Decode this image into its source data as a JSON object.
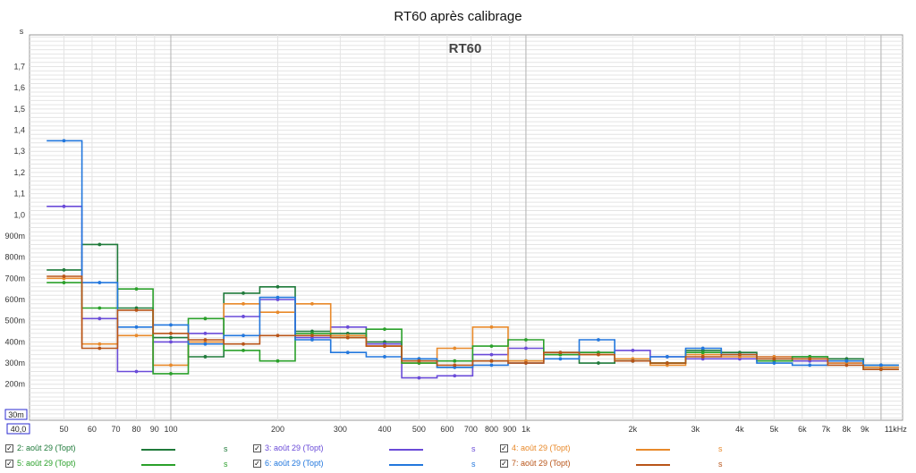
{
  "window_title": "RT60 après calibrage",
  "colors": {
    "background": "#ffffff",
    "grid_minor": "#e4e4e4",
    "grid_major": "#b4b4b4",
    "axis_text": "#333333",
    "unit_box": "#2b2bd0"
  },
  "chart_data": {
    "type": "line",
    "title": "RT60",
    "subtitle": "",
    "xlabel": "",
    "ylabel": "s",
    "x_scale": "log",
    "xlim": [
      40,
      11500
    ],
    "ylim": [
      0.03,
      1.85
    ],
    "grid": true,
    "legend_position": "bottom",
    "y_ticks": [
      {
        "value": 0.2,
        "label": "200m"
      },
      {
        "value": 0.3,
        "label": "300m"
      },
      {
        "value": 0.4,
        "label": "400m"
      },
      {
        "value": 0.5,
        "label": "500m"
      },
      {
        "value": 0.6,
        "label": "600m"
      },
      {
        "value": 0.7,
        "label": "700m"
      },
      {
        "value": 0.8,
        "label": "800m"
      },
      {
        "value": 0.9,
        "label": "900m"
      },
      {
        "value": 1.0,
        "label": "1,0"
      },
      {
        "value": 1.1,
        "label": "1,1"
      },
      {
        "value": 1.2,
        "label": "1,2"
      },
      {
        "value": 1.3,
        "label": "1,3"
      },
      {
        "value": 1.4,
        "label": "1,4"
      },
      {
        "value": 1.5,
        "label": "1,5"
      },
      {
        "value": 1.6,
        "label": "1,6"
      },
      {
        "value": 1.7,
        "label": "1,7"
      }
    ],
    "y_min_label": "30m",
    "x_ticks": [
      {
        "value": 50,
        "label": "50"
      },
      {
        "value": 60,
        "label": "60"
      },
      {
        "value": 70,
        "label": "70"
      },
      {
        "value": 80,
        "label": "80"
      },
      {
        "value": 90,
        "label": "90"
      },
      {
        "value": 100,
        "label": "100"
      },
      {
        "value": 200,
        "label": "200"
      },
      {
        "value": 300,
        "label": "300"
      },
      {
        "value": 400,
        "label": "400"
      },
      {
        "value": 500,
        "label": "500"
      },
      {
        "value": 600,
        "label": "600"
      },
      {
        "value": 700,
        "label": "700"
      },
      {
        "value": 800,
        "label": "800"
      },
      {
        "value": 900,
        "label": "900"
      },
      {
        "value": 1000,
        "label": "1k"
      },
      {
        "value": 2000,
        "label": "2k"
      },
      {
        "value": 3000,
        "label": "3k"
      },
      {
        "value": 4000,
        "label": "4k"
      },
      {
        "value": 5000,
        "label": "5k"
      },
      {
        "value": 6000,
        "label": "6k"
      },
      {
        "value": 7000,
        "label": "7k"
      },
      {
        "value": 8000,
        "label": "8k"
      },
      {
        "value": 9000,
        "label": "9k"
      },
      {
        "value": 11000,
        "label": "11kHz"
      }
    ],
    "x_min_label": "40,0",
    "band_edges": [
      44.7,
      56.2,
      70.8,
      89.1,
      112,
      141,
      178,
      224,
      282,
      355,
      447,
      562,
      708,
      891,
      1122,
      1413,
      1778,
      2239,
      2818,
      3548,
      4467,
      5623,
      7079,
      8913,
      11220
    ],
    "band_centers": [
      50,
      63,
      80,
      100,
      125,
      160,
      200,
      250,
      315,
      400,
      500,
      630,
      800,
      1000,
      1250,
      1600,
      2000,
      2500,
      3150,
      4000,
      5000,
      6300,
      8000,
      10000
    ],
    "series": [
      {
        "name": "2: août 29 (Topt)",
        "color": "#1f7a3a",
        "values": [
          0.74,
          0.86,
          0.56,
          0.42,
          0.33,
          0.63,
          0.66,
          0.45,
          0.44,
          0.4,
          0.32,
          0.28,
          0.31,
          0.31,
          0.35,
          0.3,
          0.31,
          0.3,
          0.36,
          0.35,
          0.32,
          0.33,
          0.32,
          0.29
        ]
      },
      {
        "name": "3: août 29 (Topt)",
        "color": "#6a4bd8",
        "values": [
          1.04,
          0.51,
          0.26,
          0.4,
          0.44,
          0.52,
          0.6,
          0.42,
          0.47,
          0.39,
          0.23,
          0.24,
          0.34,
          0.37,
          0.34,
          0.35,
          0.36,
          0.33,
          0.32,
          0.32,
          0.33,
          0.31,
          0.3,
          0.28
        ]
      },
      {
        "name": "4: août 29 (Topt)",
        "color": "#e8892a",
        "values": [
          0.7,
          0.39,
          0.43,
          0.29,
          0.4,
          0.58,
          0.54,
          0.58,
          0.43,
          0.38,
          0.3,
          0.37,
          0.47,
          0.31,
          0.34,
          0.34,
          0.32,
          0.29,
          0.34,
          0.33,
          0.33,
          0.32,
          0.3,
          0.28
        ]
      },
      {
        "name": "5: août 29 (Topt)",
        "color": "#2aa02a",
        "values": [
          0.68,
          0.56,
          0.65,
          0.25,
          0.51,
          0.36,
          0.31,
          0.44,
          0.42,
          0.46,
          0.3,
          0.31,
          0.38,
          0.41,
          0.34,
          0.35,
          0.31,
          0.3,
          0.35,
          0.34,
          0.31,
          0.33,
          0.31,
          0.27
        ]
      },
      {
        "name": "6: août 29 (Topt)",
        "color": "#2277dd",
        "values": [
          1.35,
          0.68,
          0.47,
          0.48,
          0.39,
          0.43,
          0.61,
          0.41,
          0.35,
          0.33,
          0.32,
          0.28,
          0.29,
          0.3,
          0.32,
          0.41,
          0.31,
          0.33,
          0.37,
          0.34,
          0.3,
          0.29,
          0.31,
          0.29
        ]
      },
      {
        "name": "7: août 29 (Topt)",
        "color": "#b85418",
        "values": [
          0.71,
          0.37,
          0.55,
          0.44,
          0.41,
          0.39,
          0.43,
          0.43,
          0.42,
          0.38,
          0.31,
          0.29,
          0.31,
          0.3,
          0.35,
          0.34,
          0.31,
          0.3,
          0.33,
          0.34,
          0.32,
          0.32,
          0.29,
          0.27
        ]
      }
    ]
  },
  "legend": {
    "unit": "s",
    "items": [
      {
        "checked_mark": "✓",
        "label": "2: août 29 (Topt)",
        "color": "#1f7a3a"
      },
      {
        "checked_mark": "✓",
        "label": "3: août 29 (Topt)",
        "color": "#6a4bd8"
      },
      {
        "checked_mark": "✓",
        "label": "4: août 29 (Topt)",
        "color": "#e8892a"
      },
      {
        "checked_mark": "✓",
        "label": "5: août 29 (Topt)",
        "color": "#2aa02a"
      },
      {
        "checked_mark": "✓",
        "label": "6: août 29 (Topt)",
        "color": "#2277dd"
      },
      {
        "checked_mark": "✓",
        "label": "7: août 29 (Topt)",
        "color": "#b85418"
      }
    ]
  }
}
